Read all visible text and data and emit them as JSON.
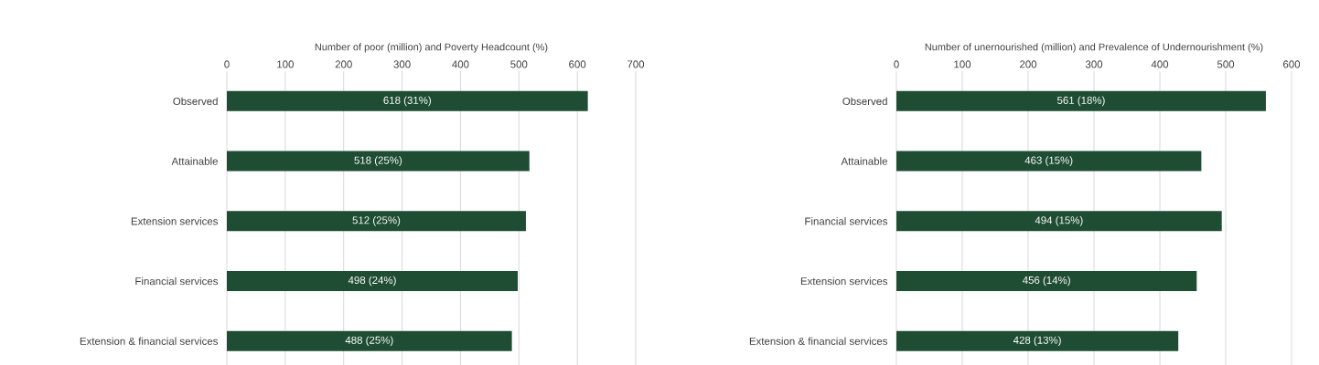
{
  "chart_data": [
    {
      "type": "bar",
      "orientation": "horizontal",
      "xlabel": "Number of poor (million) and Poverty Headcount (%)",
      "categories": [
        "Observed",
        "Attainable",
        "Extension services",
        "Financial services",
        "Extension & financial services"
      ],
      "values": [
        618,
        518,
        512,
        498,
        488
      ],
      "value_labels": [
        "618 (31%)",
        "518 (25%)",
        "512 (25%)",
        "498 (24%)",
        "488 (25%)"
      ],
      "color": "#1f4d33",
      "xlim": [
        0,
        700
      ],
      "xticks": [
        0,
        100,
        200,
        300,
        400,
        500,
        600,
        700
      ],
      "grid": "x"
    },
    {
      "type": "bar",
      "orientation": "horizontal",
      "xlabel": "Number of unernourished (million) and Prevalence of Undernourishment (%)",
      "categories": [
        "Observed",
        "Attainable",
        "Financial services",
        "Extension services",
        "Extension & financial services"
      ],
      "values": [
        561,
        463,
        494,
        456,
        428
      ],
      "value_labels": [
        "561 (18%)",
        "463 (15%)",
        "494 (15%)",
        "456 (14%)",
        "428 (13%)"
      ],
      "color": "#1f4d33",
      "xlim": [
        0,
        600
      ],
      "xticks": [
        0,
        100,
        200,
        300,
        400,
        500,
        600
      ],
      "grid": "x"
    }
  ]
}
